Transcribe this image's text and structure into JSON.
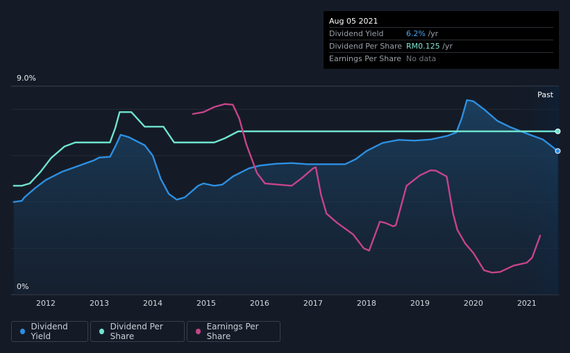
{
  "tooltip": {
    "date": "Aug 05 2021",
    "rows": [
      {
        "label": "Dividend Yield",
        "value": "6.2%",
        "suffix": " /yr"
      },
      {
        "label": "Dividend Per Share",
        "value": "RM0.125",
        "suffix": " /yr"
      },
      {
        "label": "Earnings Per Share",
        "value": "No data",
        "suffix": ""
      }
    ]
  },
  "past_label": "Past",
  "legend": [
    {
      "label": "Dividend Yield",
      "color": "#2d8fe0"
    },
    {
      "label": "Dividend Per Share",
      "color": "#6fe3cf"
    },
    {
      "label": "Earnings Per Share",
      "color": "#c6448a"
    }
  ],
  "chart_data": {
    "type": "line",
    "y_tick_labels": [
      "9.0%",
      "0%"
    ],
    "ylim": [
      0,
      9.0
    ],
    "xlim": [
      2011.35,
      2021.6
    ],
    "x_ticks": [
      2012,
      2013,
      2014,
      2015,
      2016,
      2017,
      2018,
      2019,
      2020,
      2021
    ],
    "past_region_start": 2020.6,
    "grid": "horizontal",
    "legend_position": "bottom",
    "series": [
      {
        "name": "Dividend Yield",
        "color": "#2d8fe0",
        "area": true,
        "points": [
          [
            2011.4,
            4.0
          ],
          [
            2011.55,
            4.05
          ],
          [
            2011.6,
            4.2
          ],
          [
            2011.8,
            4.6
          ],
          [
            2012.0,
            4.95
          ],
          [
            2012.3,
            5.3
          ],
          [
            2012.6,
            5.55
          ],
          [
            2012.9,
            5.8
          ],
          [
            2013.0,
            5.92
          ],
          [
            2013.2,
            5.95
          ],
          [
            2013.3,
            6.4
          ],
          [
            2013.4,
            6.9
          ],
          [
            2013.55,
            6.8
          ],
          [
            2013.85,
            6.45
          ],
          [
            2014.0,
            6.0
          ],
          [
            2014.15,
            5.0
          ],
          [
            2014.3,
            4.35
          ],
          [
            2014.45,
            4.1
          ],
          [
            2014.6,
            4.2
          ],
          [
            2014.85,
            4.7
          ],
          [
            2014.95,
            4.8
          ],
          [
            2015.15,
            4.7
          ],
          [
            2015.3,
            4.75
          ],
          [
            2015.5,
            5.1
          ],
          [
            2015.8,
            5.45
          ],
          [
            2016.0,
            5.57
          ],
          [
            2016.3,
            5.65
          ],
          [
            2016.6,
            5.68
          ],
          [
            2016.9,
            5.63
          ],
          [
            2017.2,
            5.63
          ],
          [
            2017.6,
            5.63
          ],
          [
            2017.8,
            5.85
          ],
          [
            2018.0,
            6.2
          ],
          [
            2018.3,
            6.55
          ],
          [
            2018.6,
            6.68
          ],
          [
            2018.9,
            6.65
          ],
          [
            2019.2,
            6.7
          ],
          [
            2019.5,
            6.85
          ],
          [
            2019.68,
            7.0
          ],
          [
            2019.78,
            7.6
          ],
          [
            2019.88,
            8.4
          ],
          [
            2020.0,
            8.35
          ],
          [
            2020.2,
            8.0
          ],
          [
            2020.45,
            7.5
          ],
          [
            2020.7,
            7.22
          ],
          [
            2021.0,
            6.95
          ],
          [
            2021.3,
            6.7
          ],
          [
            2021.58,
            6.2
          ]
        ]
      },
      {
        "name": "Dividend Per Share",
        "color": "#6fe3cf",
        "area": false,
        "points": [
          [
            2011.4,
            4.7
          ],
          [
            2011.55,
            4.7
          ],
          [
            2011.7,
            4.8
          ],
          [
            2011.9,
            5.3
          ],
          [
            2012.1,
            5.9
          ],
          [
            2012.35,
            6.4
          ],
          [
            2012.55,
            6.57
          ],
          [
            2012.75,
            6.57
          ],
          [
            2013.2,
            6.57
          ],
          [
            2013.3,
            7.2
          ],
          [
            2013.38,
            7.88
          ],
          [
            2013.6,
            7.88
          ],
          [
            2013.85,
            7.25
          ],
          [
            2014.2,
            7.25
          ],
          [
            2014.4,
            6.57
          ],
          [
            2015.15,
            6.57
          ],
          [
            2015.35,
            6.75
          ],
          [
            2015.6,
            7.05
          ],
          [
            2021.58,
            7.05
          ]
        ]
      },
      {
        "name": "Earnings Per Share",
        "color": "#c6448a",
        "area": false,
        "points": [
          [
            2014.75,
            7.8
          ],
          [
            2014.95,
            7.88
          ],
          [
            2015.15,
            8.1
          ],
          [
            2015.35,
            8.23
          ],
          [
            2015.5,
            8.2
          ],
          [
            2015.62,
            7.6
          ],
          [
            2015.75,
            6.5
          ],
          [
            2015.95,
            5.25
          ],
          [
            2016.1,
            4.8
          ],
          [
            2016.35,
            4.75
          ],
          [
            2016.6,
            4.7
          ],
          [
            2016.8,
            5.05
          ],
          [
            2017.0,
            5.45
          ],
          [
            2017.05,
            5.5
          ],
          [
            2017.15,
            4.3
          ],
          [
            2017.25,
            3.5
          ],
          [
            2017.45,
            3.1
          ],
          [
            2017.75,
            2.6
          ],
          [
            2017.95,
            2.0
          ],
          [
            2018.05,
            1.9
          ],
          [
            2018.25,
            3.15
          ],
          [
            2018.35,
            3.1
          ],
          [
            2018.5,
            2.95
          ],
          [
            2018.55,
            3.0
          ],
          [
            2018.75,
            4.7
          ],
          [
            2019.0,
            5.15
          ],
          [
            2019.2,
            5.37
          ],
          [
            2019.3,
            5.35
          ],
          [
            2019.5,
            5.1
          ],
          [
            2019.62,
            3.5
          ],
          [
            2019.7,
            2.8
          ],
          [
            2019.85,
            2.2
          ],
          [
            2020.0,
            1.8
          ],
          [
            2020.2,
            1.05
          ],
          [
            2020.35,
            0.95
          ],
          [
            2020.5,
            0.98
          ],
          [
            2020.75,
            1.25
          ],
          [
            2021.0,
            1.38
          ],
          [
            2021.1,
            1.6
          ],
          [
            2021.25,
            2.55
          ]
        ]
      }
    ]
  }
}
